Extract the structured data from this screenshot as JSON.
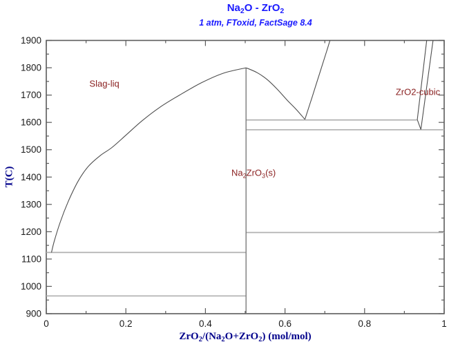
{
  "header": {
    "title_runs": [
      {
        "t": "Na"
      },
      {
        "t": "2",
        "sub": true
      },
      {
        "t": "O - ZrO"
      },
      {
        "t": "2",
        "sub": true
      }
    ],
    "subtitle": "1 atm, FToxid, FactSage 8.4"
  },
  "colors": {
    "title": "#1a1aff",
    "subtitle": "#1a1aff",
    "axis_title": "#00008b",
    "tick_label": "#1a1a1a",
    "frame": "#5a5a5a",
    "phase_label": "#8b2222",
    "boundary": "#4d4d4d",
    "isotherm": "#b0b0b0",
    "vertical": "#7a7a7a"
  },
  "chart_data": {
    "type": "line",
    "title": "Na2O - ZrO2",
    "subtitle": "1 atm, FToxid, FactSage 8.4",
    "xlabel": "ZrO2/(Na2O+ZrO2) (mol/mol)",
    "ylabel": "T(C)",
    "xlabel_runs": [
      {
        "t": "ZrO"
      },
      {
        "t": "2",
        "sub": true
      },
      {
        "t": "/(Na"
      },
      {
        "t": "2",
        "sub": true
      },
      {
        "t": "O+ZrO"
      },
      {
        "t": "2",
        "sub": true
      },
      {
        "t": ") (mol/mol)"
      }
    ],
    "xlim": [
      0,
      1
    ],
    "ylim": [
      900,
      1900
    ],
    "grid": false,
    "x_major_ticks": [
      0,
      0.2,
      0.4,
      0.6,
      0.8,
      1
    ],
    "x_major_labels": [
      "0",
      "0.2",
      "0.4",
      "0.6",
      "0.8",
      "1"
    ],
    "x_minor_ticks": [
      0.1,
      0.3,
      0.5,
      0.7,
      0.9
    ],
    "y_major_ticks": [
      900,
      1000,
      1100,
      1200,
      1300,
      1400,
      1500,
      1600,
      1700,
      1800,
      1900
    ],
    "y_major_labels": [
      "900",
      "1000",
      "1100",
      "1200",
      "1300",
      "1400",
      "1500",
      "1600",
      "1700",
      "1800",
      "1900"
    ],
    "y_minor_ticks": [
      950,
      1050,
      1150,
      1250,
      1350,
      1450,
      1550,
      1650,
      1750,
      1850
    ],
    "series": [
      {
        "name": "isotherm-1610",
        "style": "isotherm",
        "smooth": false,
        "points": [
          [
            0.502,
            1609
          ],
          [
            0.9315,
            1609
          ]
        ]
      },
      {
        "name": "isotherm-1573",
        "style": "isotherm",
        "smooth": false,
        "points": [
          [
            0.502,
            1573
          ],
          [
            1.0,
            1573
          ]
        ]
      },
      {
        "name": "isotherm-1197",
        "style": "isotherm",
        "smooth": false,
        "points": [
          [
            0.502,
            1197
          ],
          [
            1.0,
            1197
          ]
        ]
      },
      {
        "name": "isotherm-1124",
        "style": "isotherm",
        "smooth": false,
        "points": [
          [
            0.0,
            1124
          ],
          [
            0.502,
            1124
          ]
        ]
      },
      {
        "name": "isotherm-965",
        "style": "isotherm",
        "smooth": false,
        "points": [
          [
            0.0,
            965
          ],
          [
            0.502,
            965
          ]
        ]
      },
      {
        "name": "na2zro3-vertical-0.5",
        "style": "vertical",
        "smooth": false,
        "points": [
          [
            0.502,
            1800
          ],
          [
            0.502,
            900
          ]
        ]
      },
      {
        "name": "slag-liquidus-left",
        "style": "boundary",
        "smooth": true,
        "points": [
          [
            0.013,
            1124
          ],
          [
            0.02,
            1165
          ],
          [
            0.035,
            1235
          ],
          [
            0.055,
            1310
          ],
          [
            0.08,
            1385
          ],
          [
            0.105,
            1438
          ],
          [
            0.135,
            1478
          ],
          [
            0.165,
            1508
          ],
          [
            0.2,
            1553
          ],
          [
            0.24,
            1605
          ],
          [
            0.285,
            1655
          ],
          [
            0.335,
            1700
          ],
          [
            0.39,
            1745
          ],
          [
            0.445,
            1780
          ],
          [
            0.502,
            1800
          ]
        ]
      },
      {
        "name": "slag-liquidus-right",
        "style": "boundary",
        "smooth": true,
        "points": [
          [
            0.502,
            1800
          ],
          [
            0.53,
            1782
          ],
          [
            0.555,
            1757
          ],
          [
            0.58,
            1722
          ],
          [
            0.605,
            1682
          ],
          [
            0.628,
            1648
          ],
          [
            0.65,
            1611
          ]
        ]
      },
      {
        "name": "zro2-cubic-liquidus",
        "style": "boundary",
        "smooth": true,
        "points": [
          [
            0.65,
            1611
          ],
          [
            0.668,
            1692
          ],
          [
            0.688,
            1784
          ],
          [
            0.705,
            1862
          ],
          [
            0.713,
            1900
          ]
        ]
      },
      {
        "name": "zro2-cubic-solvus-left",
        "style": "boundary",
        "smooth": false,
        "points": [
          [
            0.956,
            1900
          ],
          [
            0.9325,
            1610
          ],
          [
            0.9415,
            1574
          ]
        ]
      },
      {
        "name": "zro2-cubic-solvus-right",
        "style": "boundary",
        "smooth": false,
        "points": [
          [
            0.972,
            1900
          ],
          [
            0.9415,
            1574
          ]
        ]
      }
    ],
    "annotations": [
      {
        "name": "phase-label-slag-liq",
        "x": 0.146,
        "T": 1742,
        "runs": [
          {
            "t": "Slag-liq"
          }
        ]
      },
      {
        "name": "phase-label-na2zro3",
        "x": 0.521,
        "T": 1413,
        "runs": [
          {
            "t": "Na"
          },
          {
            "t": "2",
            "sub": true
          },
          {
            "t": "ZrO"
          },
          {
            "t": "3",
            "sub": true
          },
          {
            "t": "(s)"
          }
        ]
      },
      {
        "name": "phase-label-zro2-cubic",
        "x": 0.934,
        "T": 1712,
        "runs": [
          {
            "t": "ZrO2-cubic"
          }
        ]
      }
    ]
  }
}
